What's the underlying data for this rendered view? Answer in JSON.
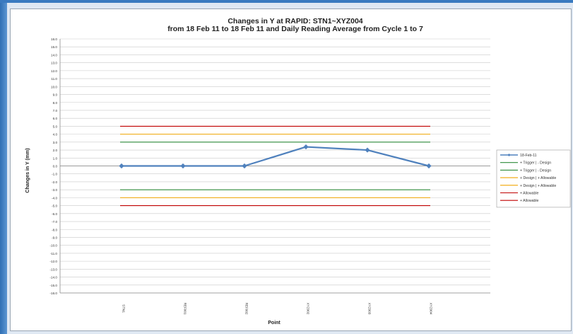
{
  "chart_data": {
    "type": "line",
    "title": "Changes in Y at RAPID:  STN1~XYZ004",
    "subtitle": "from 18 Feb 11 to 18 Feb 11 and Daily Reading Average from Cycle 1 to 7",
    "xlabel": "Point",
    "ylabel": "Changes in Y (mm)",
    "categories": [
      "STN1",
      "REF001",
      "REF002",
      "XYZ002",
      "XYZ003",
      "XYZ004"
    ],
    "ylim": [
      -16,
      16
    ],
    "ytick_step": 1,
    "grid": true,
    "legend_position": "right",
    "series": [
      {
        "name": "18-Feb-11",
        "values": [
          0,
          0,
          0,
          2.4,
          2.0,
          0
        ],
        "color": "#4f81bd",
        "marker": "diamond"
      }
    ],
    "reference_lines": [
      {
        "name": "+ Trigger | - Design",
        "value": 3,
        "color": "#2e8b3a"
      },
      {
        "name": "+ Trigger | - Design",
        "value": -3,
        "color": "#2e8b3a"
      },
      {
        "name": "+ Design | + Allowable",
        "value": 4,
        "color": "#f0a500"
      },
      {
        "name": "+ Design | + Allowable",
        "value": -4,
        "color": "#f0a500"
      },
      {
        "name": "+ Allowable",
        "value": 5,
        "color": "#c00000"
      },
      {
        "name": "+ Allowable",
        "value": -5,
        "color": "#c00000"
      }
    ]
  }
}
